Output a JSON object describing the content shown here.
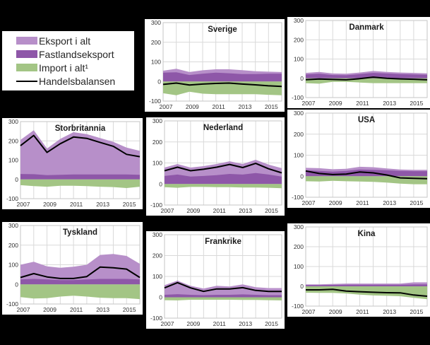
{
  "figure": {
    "background": "#000000",
    "panel_background": "#ffffff",
    "gridline_color": "#d9d9d9",
    "border_color": "#c6c6c6",
    "tick_color": "#333333",
    "title_color": "#1a1a1a"
  },
  "legend": {
    "items": [
      {
        "label": "Eksport i alt",
        "color": "#b78fc9",
        "type": "area"
      },
      {
        "label": "Fastlandseksport",
        "color": "#8e57a8",
        "type": "area"
      },
      {
        "label": "Import i alt¹",
        "color": "#a3c585",
        "type": "area"
      },
      {
        "label": "Handelsbalansen",
        "color": "#000000",
        "type": "line"
      }
    ]
  },
  "chart_data": [
    {
      "id": "sverige",
      "title": "Sverige",
      "type": "area",
      "x": [
        2007,
        2008,
        2009,
        2010,
        2011,
        2012,
        2013,
        2014,
        2015,
        2016
      ],
      "xticks": [
        2007,
        2009,
        2011,
        2013,
        2015
      ],
      "ylim": [
        -100,
        300
      ],
      "yticks": [
        -100,
        0,
        100,
        200,
        300
      ],
      "grid": true,
      "series": [
        {
          "name": "Eksport i alt",
          "type": "area",
          "color": "#b78fc9",
          "values": [
            55,
            65,
            48,
            57,
            62,
            62,
            58,
            52,
            50,
            48
          ]
        },
        {
          "name": "Fastlandseksport",
          "type": "area",
          "color": "#8e57a8",
          "values": [
            45,
            47,
            33,
            40,
            45,
            42,
            38,
            38,
            40,
            40
          ]
        },
        {
          "name": "Import i alt¹",
          "type": "area",
          "color": "#a3c585",
          "values": [
            -60,
            -70,
            -52,
            -62,
            -65,
            -65,
            -65,
            -65,
            -68,
            -70
          ]
        },
        {
          "name": "Handelsbalansen",
          "type": "line",
          "color": "#000000",
          "values": [
            -15,
            -8,
            -18,
            -13,
            -10,
            -8,
            -13,
            -17,
            -22,
            -25
          ]
        }
      ]
    },
    {
      "id": "danmark",
      "title": "Danmark",
      "type": "area",
      "x": [
        2007,
        2008,
        2009,
        2010,
        2011,
        2012,
        2013,
        2014,
        2015,
        2016
      ],
      "xticks": [
        2007,
        2009,
        2011,
        2013,
        2015
      ],
      "ylim": [
        -100,
        300
      ],
      "yticks": [
        -100,
        0,
        100,
        200,
        300
      ],
      "grid": true,
      "series": [
        {
          "name": "Eksport i alt",
          "type": "area",
          "color": "#b78fc9",
          "values": [
            28,
            33,
            25,
            24,
            30,
            38,
            33,
            30,
            28,
            26
          ]
        },
        {
          "name": "Fastlandseksport",
          "type": "area",
          "color": "#8e57a8",
          "values": [
            20,
            24,
            17,
            16,
            22,
            28,
            25,
            22,
            20,
            18
          ]
        },
        {
          "name": "Import i alt¹",
          "type": "area",
          "color": "#a3c585",
          "values": [
            -25,
            -28,
            -18,
            -18,
            -22,
            -25,
            -25,
            -25,
            -25,
            -25
          ]
        },
        {
          "name": "Handelsbalansen",
          "type": "line",
          "color": "#000000",
          "values": [
            -7,
            -4,
            -6,
            -8,
            -2,
            6,
            0,
            -3,
            -5,
            -8
          ]
        }
      ]
    },
    {
      "id": "storbritannia",
      "title": "Storbritannia",
      "type": "area",
      "x": [
        2007,
        2008,
        2009,
        2010,
        2011,
        2012,
        2013,
        2014,
        2015,
        2016
      ],
      "xticks": [
        2007,
        2009,
        2011,
        2013,
        2015
      ],
      "ylim": [
        -100,
        300
      ],
      "yticks": [
        -100,
        0,
        100,
        200,
        300
      ],
      "grid": true,
      "series": [
        {
          "name": "Eksport i alt",
          "type": "area",
          "color": "#b78fc9",
          "values": [
            205,
            255,
            160,
            210,
            245,
            235,
            215,
            195,
            165,
            148
          ]
        },
        {
          "name": "Fastlandseksport",
          "type": "area",
          "color": "#8e57a8",
          "values": [
            28,
            27,
            22,
            24,
            26,
            26,
            26,
            26,
            26,
            24
          ]
        },
        {
          "name": "Import i alt¹",
          "type": "area",
          "color": "#a3c585",
          "values": [
            -30,
            -35,
            -38,
            -33,
            -33,
            -35,
            -38,
            -40,
            -45,
            -38
          ]
        },
        {
          "name": "Handelsbalansen",
          "type": "line",
          "color": "#000000",
          "values": [
            175,
            228,
            140,
            185,
            220,
            213,
            192,
            172,
            130,
            118
          ]
        }
      ]
    },
    {
      "id": "nederland",
      "title": "Nederland",
      "type": "area",
      "x": [
        2007,
        2008,
        2009,
        2010,
        2011,
        2012,
        2013,
        2014,
        2015,
        2016
      ],
      "xticks": [
        2007,
        2009,
        2011,
        2013,
        2015
      ],
      "ylim": [
        -100,
        300
      ],
      "yticks": [
        -100,
        0,
        100,
        200,
        300
      ],
      "grid": true,
      "series": [
        {
          "name": "Eksport i alt",
          "type": "area",
          "color": "#b78fc9",
          "values": [
            78,
            95,
            78,
            85,
            95,
            108,
            95,
            115,
            92,
            75
          ]
        },
        {
          "name": "Fastlandseksport",
          "type": "area",
          "color": "#8e57a8",
          "values": [
            38,
            45,
            35,
            38,
            42,
            48,
            45,
            52,
            45,
            35
          ]
        },
        {
          "name": "Import i alt¹",
          "type": "area",
          "color": "#a3c585",
          "values": [
            -15,
            -18,
            -14,
            -14,
            -15,
            -15,
            -17,
            -17,
            -18,
            -20
          ]
        },
        {
          "name": "Handelsbalansen",
          "type": "line",
          "color": "#000000",
          "values": [
            63,
            80,
            63,
            70,
            80,
            93,
            78,
            98,
            72,
            53
          ]
        }
      ]
    },
    {
      "id": "usa",
      "title": "USA",
      "type": "area",
      "x": [
        2007,
        2008,
        2009,
        2010,
        2011,
        2012,
        2013,
        2014,
        2015,
        2016
      ],
      "xticks": [
        2007,
        2009,
        2011,
        2013,
        2015
      ],
      "ylim": [
        -100,
        300
      ],
      "yticks": [
        -100,
        0,
        100,
        200,
        300
      ],
      "grid": true,
      "series": [
        {
          "name": "Eksport i alt",
          "type": "area",
          "color": "#b78fc9",
          "values": [
            40,
            38,
            33,
            35,
            45,
            43,
            37,
            32,
            30,
            30
          ]
        },
        {
          "name": "Fastlandseksport",
          "type": "area",
          "color": "#8e57a8",
          "values": [
            28,
            25,
            22,
            25,
            32,
            30,
            28,
            25,
            24,
            24
          ]
        },
        {
          "name": "Import i alt¹",
          "type": "area",
          "color": "#a3c585",
          "values": [
            -24,
            -25,
            -22,
            -24,
            -25,
            -27,
            -30,
            -35,
            -38,
            -38
          ]
        },
        {
          "name": "Handelsbalansen",
          "type": "line",
          "color": "#000000",
          "values": [
            25,
            13,
            8,
            10,
            20,
            16,
            6,
            -8,
            -10,
            -12
          ]
        }
      ]
    },
    {
      "id": "tyskland",
      "title": "Tyskland",
      "type": "area",
      "x": [
        2007,
        2008,
        2009,
        2010,
        2011,
        2012,
        2013,
        2014,
        2015,
        2016
      ],
      "xticks": [
        2007,
        2009,
        2011,
        2013,
        2015
      ],
      "ylim": [
        -100,
        300
      ],
      "yticks": [
        -100,
        0,
        100,
        200,
        300
      ],
      "grid": true,
      "series": [
        {
          "name": "Eksport i alt",
          "type": "area",
          "color": "#b78fc9",
          "values": [
            100,
            115,
            92,
            85,
            90,
            100,
            150,
            155,
            145,
            105
          ]
        },
        {
          "name": "Fastlandseksport",
          "type": "area",
          "color": "#8e57a8",
          "values": [
            25,
            28,
            25,
            22,
            22,
            25,
            28,
            28,
            28,
            25
          ]
        },
        {
          "name": "Import i alt¹",
          "type": "area",
          "color": "#a3c585",
          "values": [
            -65,
            -72,
            -70,
            -62,
            -58,
            -62,
            -68,
            -70,
            -70,
            -75
          ]
        },
        {
          "name": "Handelsbalansen",
          "type": "line",
          "color": "#000000",
          "values": [
            35,
            55,
            38,
            30,
            30,
            40,
            88,
            85,
            78,
            35
          ]
        }
      ]
    },
    {
      "id": "frankrike",
      "title": "Frankrike",
      "type": "area",
      "x": [
        2007,
        2008,
        2009,
        2010,
        2011,
        2012,
        2013,
        2014,
        2015,
        2016
      ],
      "xticks": [
        2007,
        2009,
        2011,
        2013,
        2015
      ],
      "ylim": [
        -100,
        300
      ],
      "yticks": [
        -100,
        0,
        100,
        200,
        300
      ],
      "grid": true,
      "series": [
        {
          "name": "Eksport i alt",
          "type": "area",
          "color": "#b78fc9",
          "values": [
            58,
            80,
            55,
            42,
            55,
            52,
            62,
            48,
            44,
            44
          ]
        },
        {
          "name": "Fastlandseksport",
          "type": "area",
          "color": "#8e57a8",
          "values": [
            12,
            15,
            12,
            10,
            12,
            12,
            14,
            12,
            10,
            10
          ]
        },
        {
          "name": "Import i alt¹",
          "type": "area",
          "color": "#a3c585",
          "values": [
            -14,
            -15,
            -12,
            -12,
            -12,
            -12,
            -13,
            -13,
            -14,
            -15
          ]
        },
        {
          "name": "Handelsbalansen",
          "type": "line",
          "color": "#000000",
          "values": [
            45,
            70,
            45,
            28,
            40,
            40,
            46,
            33,
            28,
            28
          ]
        }
      ]
    },
    {
      "id": "kina",
      "title": "Kina",
      "type": "area",
      "x": [
        2007,
        2008,
        2009,
        2010,
        2011,
        2012,
        2013,
        2014,
        2015,
        2016
      ],
      "xticks": [
        2007,
        2009,
        2011,
        2013,
        2015
      ],
      "ylim": [
        -100,
        300
      ],
      "yticks": [
        -100,
        0,
        100,
        200,
        300
      ],
      "grid": true,
      "series": [
        {
          "name": "Eksport i alt",
          "type": "area",
          "color": "#b78fc9",
          "values": [
            10,
            10,
            12,
            14,
            14,
            14,
            14,
            14,
            20,
            20
          ]
        },
        {
          "name": "Fastlandseksport",
          "type": "area",
          "color": "#8e57a8",
          "values": [
            6,
            6,
            7,
            8,
            8,
            8,
            8,
            8,
            10,
            10
          ]
        },
        {
          "name": "Import i alt¹",
          "type": "area",
          "color": "#a3c585",
          "values": [
            -32,
            -33,
            -33,
            -36,
            -42,
            -46,
            -48,
            -50,
            -58,
            -65
          ]
        },
        {
          "name": "Handelsbalansen",
          "type": "line",
          "color": "#000000",
          "values": [
            -18,
            -18,
            -15,
            -24,
            -27,
            -30,
            -32,
            -33,
            -44,
            -50
          ]
        }
      ]
    }
  ]
}
